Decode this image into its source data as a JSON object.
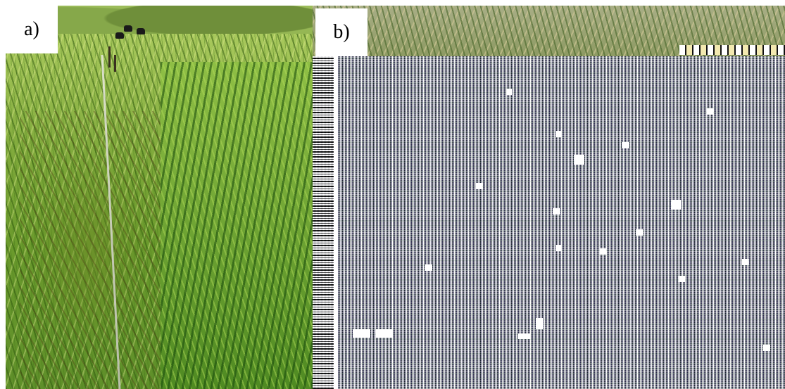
{
  "panels": [
    {
      "id": "a",
      "label": "a)"
    },
    {
      "id": "b",
      "label": "b)"
    }
  ],
  "colors": {
    "grass_light": "#a9c95d",
    "grass_dark": "#4f8a22",
    "background": "#ffffff"
  }
}
